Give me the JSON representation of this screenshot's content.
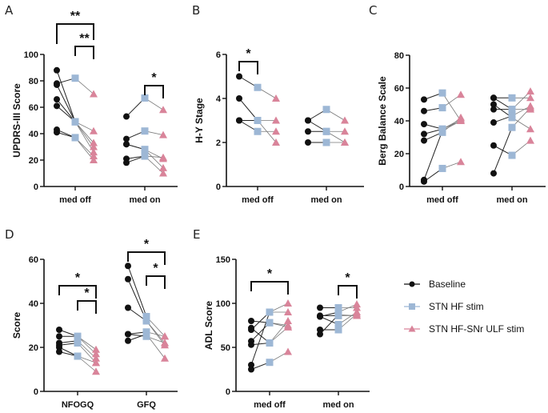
{
  "colors": {
    "baseline": "#111111",
    "stn_hf": "#9db7d5",
    "ulf": "#d9849a",
    "axis": "#111111"
  },
  "legend": {
    "placement": "right-bottom",
    "entries": [
      {
        "name": "Baseline",
        "marker": "circle"
      },
      {
        "name": "STN HF stim",
        "marker": "square"
      },
      {
        "name": "STN HF-SNr ULF stim",
        "marker": "triangle"
      }
    ]
  },
  "chart_data": [
    {
      "panel": "A",
      "type": "line",
      "ylabel": "UPDRS-III Score",
      "ylim": [
        0,
        100
      ],
      "yticks": [
        0,
        20,
        40,
        60,
        80,
        100
      ],
      "categories": [
        "med off",
        "med on"
      ],
      "series_names": [
        "Baseline",
        "STN HF stim",
        "STN HF-SNr ULF stim"
      ],
      "groups": [
        {
          "category": "med off",
          "subjects": [
            [
              88,
              49,
              30
            ],
            [
              78,
              82,
              70
            ],
            [
              77,
              49,
              26
            ],
            [
              66,
              49,
              33
            ],
            [
              61,
              49,
              42
            ],
            [
              43,
              37,
              23
            ],
            [
              41,
              37,
              20
            ]
          ]
        },
        {
          "category": "med on",
          "subjects": [
            [
              53,
              67,
              58
            ],
            [
              36,
              42,
              39
            ],
            [
              32,
              28,
              14
            ],
            [
              32,
              28,
              21
            ],
            [
              21,
              23,
              22
            ],
            [
              18,
              23,
              10
            ]
          ]
        }
      ],
      "significance": [
        {
          "category": "med off",
          "from": 0,
          "to": 2,
          "label": "**",
          "level": 1
        },
        {
          "category": "med off",
          "from": 1,
          "to": 2,
          "label": "**",
          "level": 0
        },
        {
          "category": "med on",
          "from": 1,
          "to": 2,
          "label": "*",
          "level": 0
        }
      ]
    },
    {
      "panel": "B",
      "type": "line",
      "ylabel": "H-Y Stage",
      "ylim": [
        0,
        6
      ],
      "yticks": [
        0,
        2,
        4,
        6
      ],
      "categories": [
        "med off",
        "med on"
      ],
      "series_names": [
        "Baseline",
        "STN HF stim",
        "STN HF-SNr ULF stim"
      ],
      "groups": [
        {
          "category": "med off",
          "subjects": [
            [
              5,
              4.5,
              4
            ],
            [
              4,
              3,
              2
            ],
            [
              3,
              3,
              3
            ],
            [
              3,
              2.5,
              2.5
            ]
          ]
        },
        {
          "category": "med on",
          "subjects": [
            [
              3,
              3.5,
              3
            ],
            [
              3,
              2.5,
              2
            ],
            [
              2.5,
              2.5,
              2.5
            ],
            [
              2,
              2,
              2
            ]
          ]
        }
      ],
      "significance": [
        {
          "category": "med off",
          "from": 0,
          "to": 1,
          "label": "*",
          "level": 0
        }
      ]
    },
    {
      "panel": "C",
      "type": "line",
      "ylabel": "Berg Balance Scale",
      "ylim": [
        0,
        80
      ],
      "yticks": [
        0,
        20,
        40,
        60,
        80
      ],
      "categories": [
        "med off",
        "med on"
      ],
      "series_names": [
        "Baseline",
        "STN HF stim",
        "STN HF-SNr ULF stim"
      ],
      "groups": [
        {
          "category": "med off",
          "subjects": [
            [
              53,
              57,
              40
            ],
            [
              46,
              48,
              56
            ],
            [
              38,
              35,
              41
            ],
            [
              32,
              35,
              40
            ],
            [
              28,
              33,
              42
            ],
            [
              4,
              34,
              40
            ],
            [
              3,
              11,
              15
            ]
          ]
        },
        {
          "category": "med on",
          "subjects": [
            [
              54,
              54,
              54
            ],
            [
              54,
              47,
              58
            ],
            [
              50,
              42,
              35
            ],
            [
              47,
              47,
              47
            ],
            [
              39,
              43,
              49
            ],
            [
              25,
              19,
              28
            ],
            [
              8,
              36,
              48
            ]
          ]
        }
      ],
      "significance": []
    },
    {
      "panel": "D",
      "type": "line",
      "ylabel": "Score",
      "ylim": [
        0,
        60
      ],
      "yticks": [
        0,
        20,
        40,
        60
      ],
      "categories": [
        "NFOGQ",
        "GFQ"
      ],
      "series_names": [
        "Baseline",
        "STN HF stim",
        "STN HF-SNr ULF stim"
      ],
      "groups": [
        {
          "category": "NFOGQ",
          "subjects": [
            [
              28,
              25,
              19
            ],
            [
              25,
              25,
              17
            ],
            [
              22,
              23,
              15
            ],
            [
              21,
              22,
              13
            ],
            [
              20,
              16,
              9
            ],
            [
              18,
              16,
              13
            ]
          ]
        },
        {
          "category": "GFQ",
          "subjects": [
            [
              57,
              34,
              25
            ],
            [
              51,
              32,
              22
            ],
            [
              38,
              32,
              21
            ],
            [
              26,
              27,
              25
            ],
            [
              26,
              25,
              22
            ],
            [
              23,
              26,
              15
            ]
          ]
        }
      ],
      "significance": [
        {
          "category": "NFOGQ",
          "from": 0,
          "to": 2,
          "label": "*",
          "level": 1
        },
        {
          "category": "NFOGQ",
          "from": 1,
          "to": 2,
          "label": "*",
          "level": 0
        },
        {
          "category": "GFQ",
          "from": 0,
          "to": 2,
          "label": "*",
          "level": 1
        },
        {
          "category": "GFQ",
          "from": 1,
          "to": 2,
          "label": "*",
          "level": 0
        }
      ]
    },
    {
      "panel": "E",
      "type": "line",
      "ylabel": "ADL Score",
      "ylim": [
        0,
        150
      ],
      "yticks": [
        0,
        50,
        100,
        150
      ],
      "categories": [
        "med off",
        "med on"
      ],
      "series_names": [
        "Baseline",
        "STN HF stim",
        "STN HF-SNr ULF stim"
      ],
      "groups": [
        {
          "category": "med off",
          "subjects": [
            [
              80,
              78,
              73
            ],
            [
              72,
              55,
              80
            ],
            [
              70,
              90,
              90
            ],
            [
              57,
              78,
              75
            ],
            [
              53,
              55,
              73
            ],
            [
              30,
              90,
              100
            ],
            [
              25,
              33,
              45
            ]
          ]
        },
        {
          "category": "med on",
          "subjects": [
            [
              95,
              95,
              95
            ],
            [
              86,
              86,
              86
            ],
            [
              85,
              76,
              90
            ],
            [
              85,
              90,
              99
            ],
            [
              70,
              70,
              88
            ],
            [
              65,
              87,
              86
            ]
          ]
        }
      ],
      "significance": [
        {
          "category": "med off",
          "from": 0,
          "to": 2,
          "label": "*",
          "level": 1
        },
        {
          "category": "med on",
          "from": 1,
          "to": 2,
          "label": "*",
          "level": 0
        }
      ]
    }
  ]
}
